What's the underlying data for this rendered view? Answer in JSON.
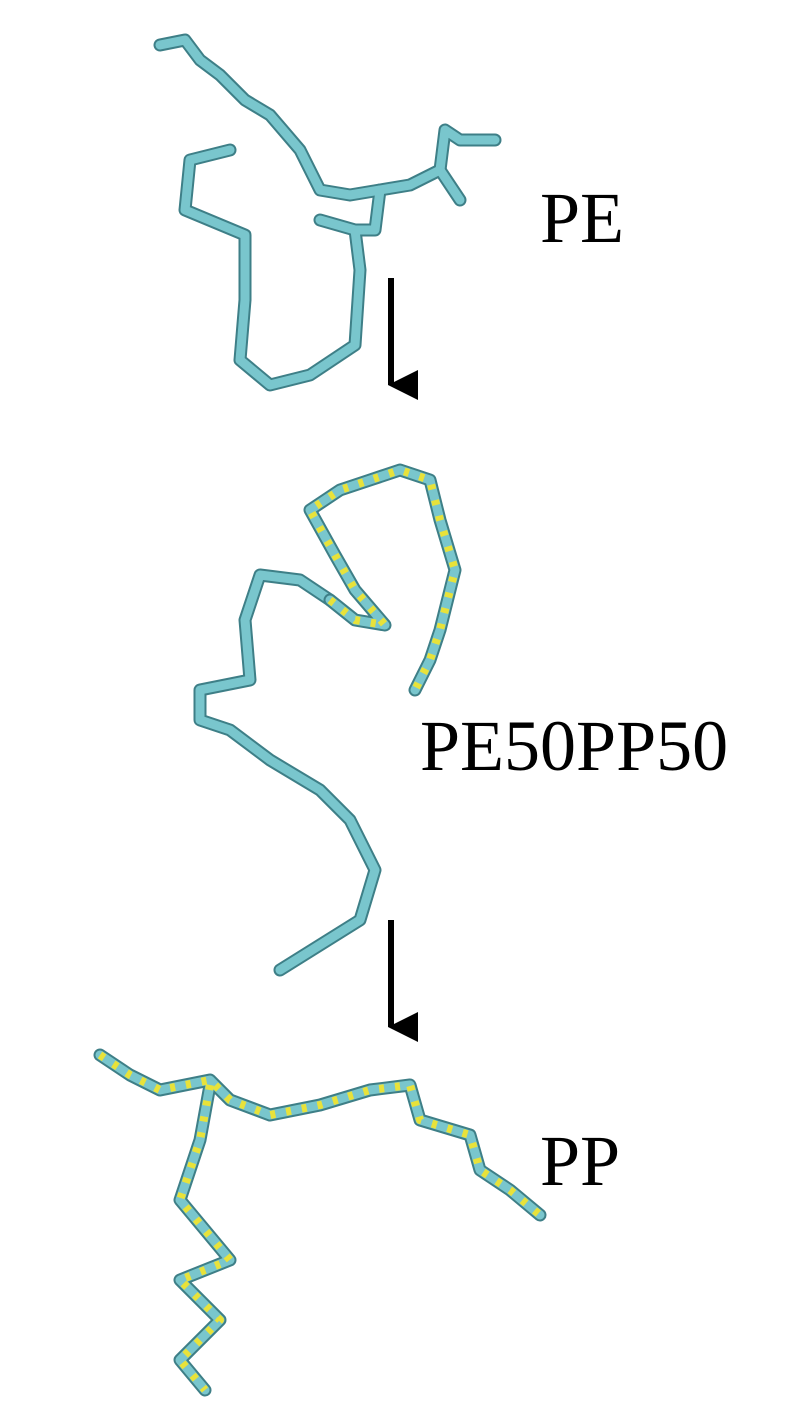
{
  "labels": [
    "PE",
    "PE50PP50",
    "PP"
  ]
}
